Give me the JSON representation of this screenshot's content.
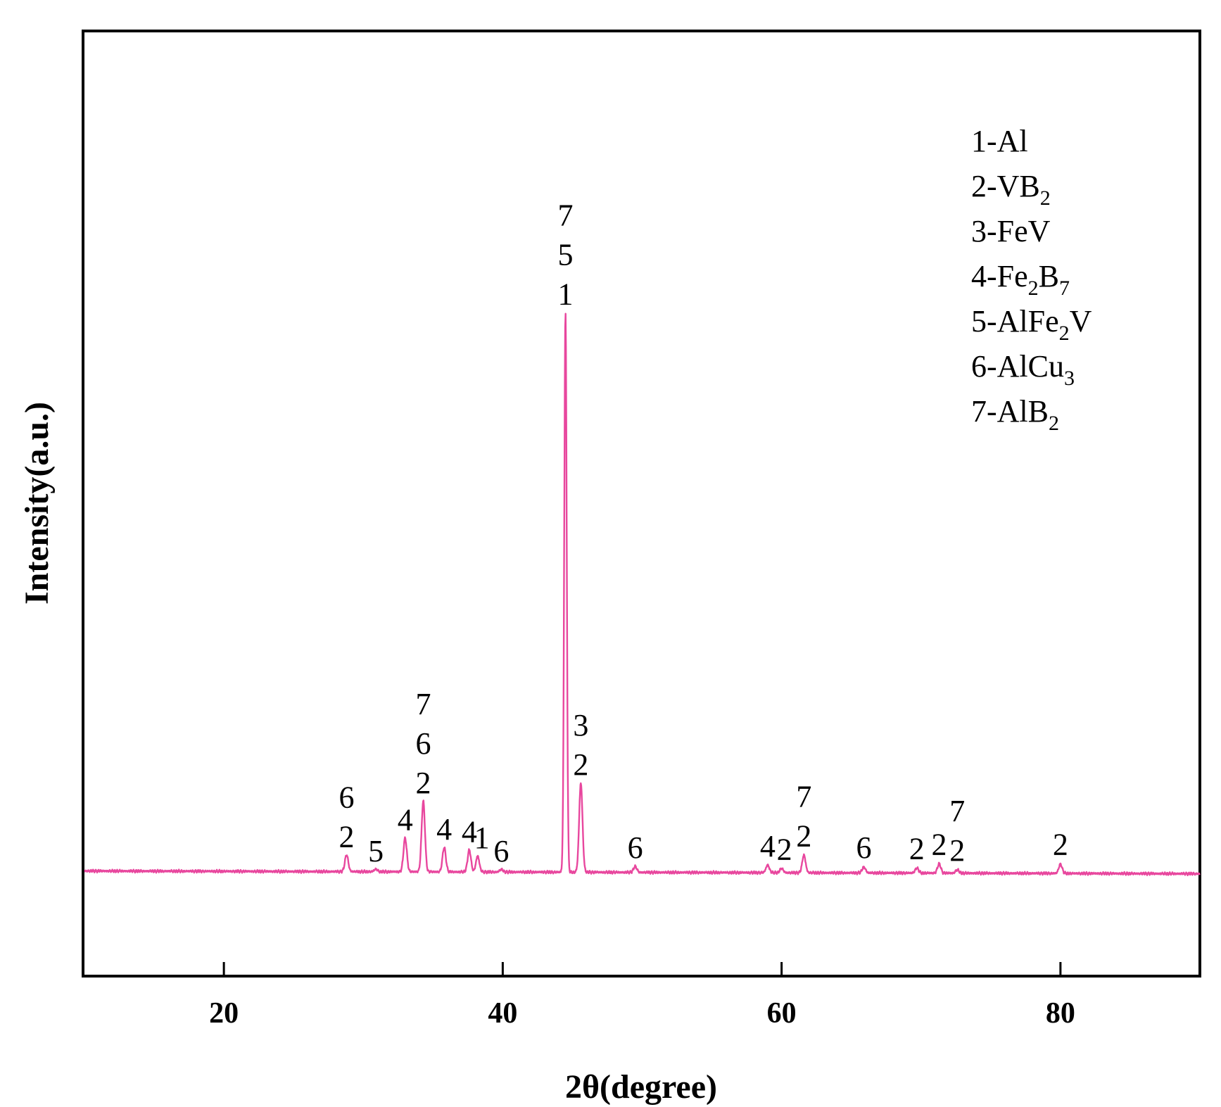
{
  "chart_data": {
    "type": "line",
    "title": "",
    "xlabel": "2θ(degree)",
    "ylabel": "Intensity(a.u.)",
    "xlim": [
      10,
      90
    ],
    "ylim": [
      -12,
      100
    ],
    "x_ticks": [
      20,
      40,
      60,
      80
    ],
    "grid": false,
    "line_color": "#e8479e",
    "baseline": 0,
    "peaks": [
      {
        "x": 28.8,
        "y": 2.0
      },
      {
        "x": 30.9,
        "y": 0.3
      },
      {
        "x": 33.0,
        "y": 4.0
      },
      {
        "x": 34.3,
        "y": 8.4
      },
      {
        "x": 35.8,
        "y": 2.9
      },
      {
        "x": 37.6,
        "y": 2.6
      },
      {
        "x": 38.2,
        "y": 1.9
      },
      {
        "x": 39.9,
        "y": 0.3
      },
      {
        "x": 44.5,
        "y": 66.5
      },
      {
        "x": 45.6,
        "y": 10.6
      },
      {
        "x": 49.5,
        "y": 0.7
      },
      {
        "x": 59.0,
        "y": 0.9
      },
      {
        "x": 60.0,
        "y": 0.5
      },
      {
        "x": 61.6,
        "y": 2.1
      },
      {
        "x": 65.9,
        "y": 0.7
      },
      {
        "x": 69.7,
        "y": 0.6
      },
      {
        "x": 71.3,
        "y": 1.1
      },
      {
        "x": 72.6,
        "y": 0.4
      },
      {
        "x": 80.0,
        "y": 1.1
      }
    ],
    "annotations": [
      {
        "x": 28.8,
        "lines": [
          "6",
          "2"
        ]
      },
      {
        "x": 30.9,
        "lines": [
          "5"
        ]
      },
      {
        "x": 33.0,
        "lines": [
          "4"
        ]
      },
      {
        "x": 34.3,
        "lines": [
          "7",
          "6",
          "2"
        ]
      },
      {
        "x": 35.8,
        "lines": [
          "4"
        ]
      },
      {
        "x": 37.6,
        "lines": [
          "4"
        ]
      },
      {
        "x": 38.5,
        "lines": [
          "1"
        ]
      },
      {
        "x": 39.9,
        "lines": [
          "6"
        ]
      },
      {
        "x": 44.5,
        "lines": [
          "7",
          "5",
          "1"
        ]
      },
      {
        "x": 45.6,
        "lines": [
          "3",
          "2"
        ]
      },
      {
        "x": 49.5,
        "lines": [
          "6"
        ]
      },
      {
        "x": 59.0,
        "lines": [
          "4"
        ]
      },
      {
        "x": 60.2,
        "lines": [
          "2"
        ]
      },
      {
        "x": 61.6,
        "lines": [
          "7",
          "2"
        ]
      },
      {
        "x": 65.9,
        "lines": [
          "6"
        ]
      },
      {
        "x": 69.7,
        "lines": [
          "2"
        ]
      },
      {
        "x": 71.3,
        "lines": [
          "2"
        ]
      },
      {
        "x": 72.6,
        "lines": [
          "7",
          "2"
        ]
      },
      {
        "x": 80.0,
        "lines": [
          "2"
        ]
      }
    ],
    "legend": {
      "placement": "top-right",
      "entries": [
        {
          "prefix": "1-Al",
          "sub": "",
          "after": "",
          "sub2": ""
        },
        {
          "prefix": "2-VB",
          "sub": "2",
          "after": "",
          "sub2": ""
        },
        {
          "prefix": "3-FeV",
          "sub": "",
          "after": "",
          "sub2": ""
        },
        {
          "prefix": "4-Fe",
          "sub": "2",
          "after": "B",
          "sub2": "7"
        },
        {
          "prefix": "5-AlFe",
          "sub": "2",
          "after": "V",
          "sub2": ""
        },
        {
          "prefix": "6-AlCu",
          "sub": "3",
          "after": "",
          "sub2": ""
        },
        {
          "prefix": "7-AlB",
          "sub": "2",
          "after": "",
          "sub2": ""
        }
      ]
    }
  }
}
